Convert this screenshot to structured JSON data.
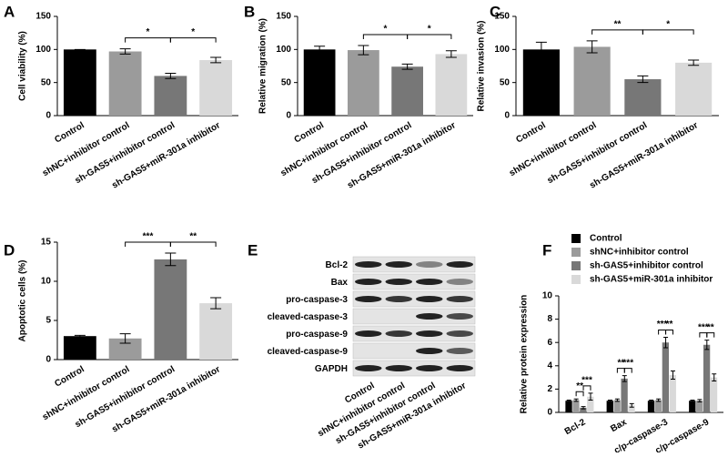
{
  "chart_data": [
    {
      "type": "bar",
      "label": "A",
      "ylabel": "Cell viability (%)",
      "categories": [
        "Control",
        "shNC+inhibitor control",
        "sh-GAS5+inhibitor control",
        "sh-GAS5+miR-301a inhibitor"
      ],
      "values": [
        100,
        97,
        60,
        84
      ],
      "errors": [
        0,
        4,
        4,
        4
      ],
      "colors": [
        "#000000",
        "#9b9b9b",
        "#777777",
        "#d9d9d9"
      ],
      "ylim": [
        0,
        150
      ],
      "yticks": [
        0,
        50,
        100,
        150
      ],
      "brackets": [
        {
          "from": 1,
          "to": 2,
          "label": "*"
        },
        {
          "from": 2,
          "to": 3,
          "label": "*"
        }
      ]
    },
    {
      "type": "bar",
      "label": "B",
      "ylabel": "Relative migration (%)",
      "categories": [
        "Control",
        "shNC+inhibitor control",
        "sh-GAS5+inhibitor control",
        "sh-GAS5+miR-301a inhibitor"
      ],
      "values": [
        100,
        99,
        74,
        93
      ],
      "errors": [
        5,
        7,
        4,
        5
      ],
      "colors": [
        "#000000",
        "#9b9b9b",
        "#777777",
        "#d9d9d9"
      ],
      "ylim": [
        0,
        150
      ],
      "yticks": [
        0,
        50,
        100,
        150
      ],
      "brackets": [
        {
          "from": 1,
          "to": 2,
          "label": "*"
        },
        {
          "from": 2,
          "to": 3,
          "label": "*"
        }
      ]
    },
    {
      "type": "bar",
      "label": "C",
      "ylabel": "Relative invasion (%)",
      "categories": [
        "Control",
        "shNC+inhibitor control",
        "sh-GAS5+inhibitor control",
        "sh-GAS5+miR-301a inhibitor"
      ],
      "values": [
        100,
        104,
        55,
        80
      ],
      "errors": [
        11,
        9,
        5,
        4
      ],
      "colors": [
        "#000000",
        "#9b9b9b",
        "#777777",
        "#d9d9d9"
      ],
      "ylim": [
        0,
        150
      ],
      "yticks": [
        0,
        50,
        100,
        150
      ],
      "brackets": [
        {
          "from": 1,
          "to": 2,
          "label": "**"
        },
        {
          "from": 2,
          "to": 3,
          "label": "*"
        }
      ]
    },
    {
      "type": "bar",
      "label": "D",
      "ylabel": "Apoptotic cells (%)",
      "categories": [
        "Control",
        "shNC+inhibitor control",
        "sh-GAS5+inhibitor control",
        "sh-GAS5+miR-301a inhibitor"
      ],
      "values": [
        3.0,
        2.7,
        12.8,
        7.2
      ],
      "errors": [
        0.1,
        0.6,
        0.8,
        0.7
      ],
      "colors": [
        "#000000",
        "#9b9b9b",
        "#777777",
        "#d9d9d9"
      ],
      "ylim": [
        0,
        15
      ],
      "yticks": [
        0,
        5,
        10,
        15
      ],
      "brackets": [
        {
          "from": 1,
          "to": 2,
          "label": "***"
        },
        {
          "from": 2,
          "to": 3,
          "label": "**"
        }
      ]
    },
    {
      "type": "grouped_bar",
      "label": "F",
      "ylabel": "Relative protein expression",
      "categories": [
        "Bcl-2",
        "Bax",
        "c/p-caspase-3",
        "c/p-caspase-9"
      ],
      "series": [
        {
          "name": "Control",
          "color": "#000000",
          "values": [
            1.0,
            1.0,
            1.0,
            1.0
          ],
          "errors": [
            0.05,
            0.05,
            0.05,
            0.05
          ]
        },
        {
          "name": "shNC+inhibitor control",
          "color": "#9b9b9b",
          "values": [
            1.05,
            1.05,
            1.05,
            1.0
          ],
          "errors": [
            0.1,
            0.1,
            0.1,
            0.1
          ]
        },
        {
          "name": "sh-GAS5+inhibitor control",
          "color": "#777777",
          "values": [
            0.4,
            2.9,
            6.0,
            5.8
          ],
          "errors": [
            0.1,
            0.25,
            0.45,
            0.4
          ]
        },
        {
          "name": "sh-GAS5+miR-301a inhibitor",
          "color": "#d9d9d9",
          "values": [
            1.35,
            0.6,
            3.2,
            3.0
          ],
          "errors": [
            0.3,
            0.15,
            0.35,
            0.3
          ]
        }
      ],
      "ylim": [
        0,
        10
      ],
      "yticks": [
        0,
        2,
        4,
        6,
        8,
        10
      ],
      "brackets": [
        {
          "category": 0,
          "from": 1,
          "to": 2,
          "label": "**"
        },
        {
          "category": 0,
          "from": 2,
          "to": 3,
          "label": "***"
        },
        {
          "category": 1,
          "from": 1,
          "to": 2,
          "label": "**"
        },
        {
          "category": 1,
          "from": 2,
          "to": 3,
          "label": "***"
        },
        {
          "category": 2,
          "from": 1,
          "to": 2,
          "label": "***"
        },
        {
          "category": 2,
          "from": 2,
          "to": 3,
          "label": "**"
        },
        {
          "category": 3,
          "from": 1,
          "to": 2,
          "label": "***"
        },
        {
          "category": 3,
          "from": 2,
          "to": 3,
          "label": "**"
        }
      ]
    }
  ],
  "blot": {
    "label": "E",
    "rows": [
      "Bcl-2",
      "Bax",
      "pro-caspase-3",
      "cleaved-caspase-3",
      "pro-caspase-9",
      "cleaved-caspase-9",
      "GAPDH"
    ],
    "columns": [
      "Control",
      "shNC+inhibitor control",
      "sh-GAS5+inhibitor control",
      "sh-GAS5+miR-301a inhibitor"
    ]
  }
}
